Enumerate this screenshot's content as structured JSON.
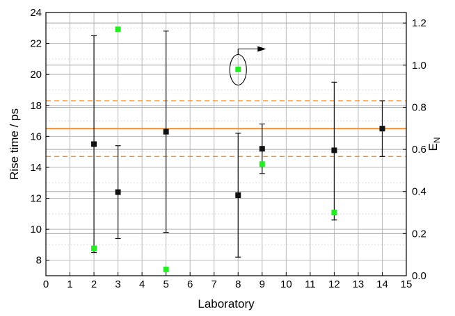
{
  "chart_data": {
    "type": "scatter",
    "xlabel": "Laboratory",
    "ylabel": "Rise time / ps",
    "y2label": "E",
    "y2label_sub": "N",
    "xlim": [
      0,
      15
    ],
    "ylim": [
      7,
      24
    ],
    "y2lim": [
      0,
      1.25
    ],
    "x_ticks": [
      "0",
      "1",
      "2",
      "3",
      "4",
      "5",
      "6",
      "7",
      "8",
      "9",
      "10",
      "11",
      "12",
      "13",
      "14",
      "15"
    ],
    "y_ticks": [
      "8",
      "10",
      "12",
      "14",
      "16",
      "18",
      "20",
      "22",
      "24"
    ],
    "y2_ticks": [
      "0.0",
      "0.2",
      "0.4",
      "0.6",
      "0.8",
      "1.0",
      "1.2"
    ],
    "grid": true,
    "colors": {
      "rise": "#111111",
      "en": "#22ee22",
      "ref": "#ff8c1a"
    },
    "reference": {
      "value": 16.5,
      "lower": 14.7,
      "upper": 18.3
    },
    "series": [
      {
        "axis": "left",
        "points": [
          {
            "x": 2,
            "y": 15.5,
            "low": 8.5,
            "high": 22.5
          },
          {
            "x": 3,
            "y": 12.4,
            "low": 9.4,
            "high": 15.4
          },
          {
            "x": 5,
            "y": 16.3,
            "low": 9.8,
            "high": 22.8
          },
          {
            "x": 8,
            "y": 12.2,
            "low": 8.2,
            "high": 16.2
          },
          {
            "x": 9,
            "y": 15.2,
            "low": 13.6,
            "high": 16.8
          },
          {
            "x": 12,
            "y": 15.1,
            "low": 10.6,
            "high": 19.5
          },
          {
            "x": 14,
            "y": 16.5,
            "low": 14.7,
            "high": 18.3
          }
        ]
      },
      {
        "axis": "right",
        "points": [
          {
            "x": 2,
            "y": 0.13
          },
          {
            "x": 3,
            "y": 1.17
          },
          {
            "x": 5,
            "y": 0.03
          },
          {
            "x": 8,
            "y": 0.98
          },
          {
            "x": 9,
            "y": 0.53
          },
          {
            "x": 12,
            "y": 0.3
          }
        ]
      }
    ],
    "annotation": {
      "type": "ellipse-arrow",
      "x": 8,
      "y": 20.3,
      "direction": "right"
    }
  }
}
